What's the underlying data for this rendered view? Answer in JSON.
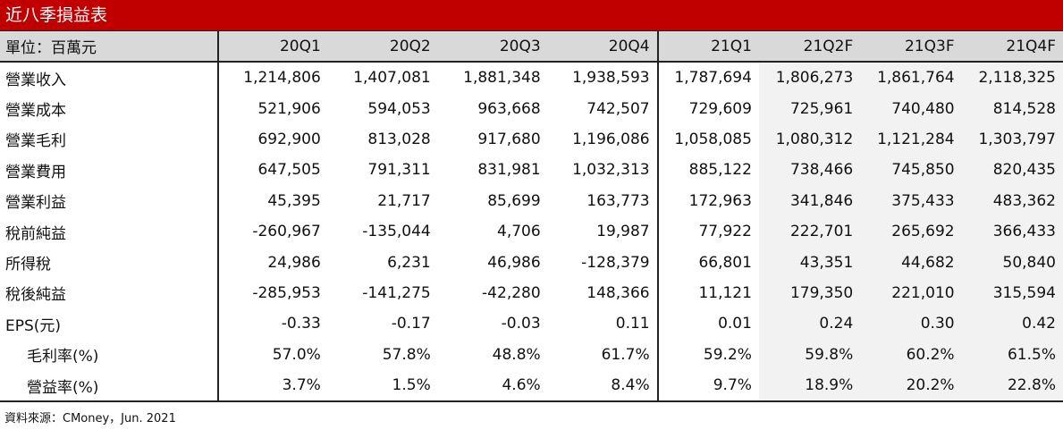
{
  "title": "近八季損益表",
  "unit_label": "單位：百萬元",
  "quarters": [
    "20Q1",
    "20Q2",
    "20Q3",
    "20Q4",
    "21Q1",
    "21Q2F",
    "21Q3F",
    "21Q4F"
  ],
  "rows": [
    {
      "label": "營業收入",
      "values": [
        "1,214,806",
        "1,407,081",
        "1,881,348",
        "1,938,593",
        "1,787,694",
        "1,806,273",
        "1,861,764",
        "2,118,325"
      ]
    },
    {
      "label": "營業成本",
      "values": [
        "521,906",
        "594,053",
        "963,668",
        "742,507",
        "729,609",
        "725,961",
        "740,480",
        "814,528"
      ]
    },
    {
      "label": "營業毛利",
      "values": [
        "692,900",
        "813,028",
        "917,680",
        "1,196,086",
        "1,058,085",
        "1,080,312",
        "1,121,284",
        "1,303,797"
      ]
    },
    {
      "label": "營業費用",
      "values": [
        "647,505",
        "791,311",
        "831,981",
        "1,032,313",
        "885,122",
        "738,466",
        "745,850",
        "820,435"
      ]
    },
    {
      "label": "營業利益",
      "values": [
        "45,395",
        "21,717",
        "85,699",
        "163,773",
        "172,963",
        "341,846",
        "375,433",
        "483,362"
      ]
    },
    {
      "label": "稅前純益",
      "values": [
        "-260,967",
        "-135,044",
        "4,706",
        "19,987",
        "77,922",
        "222,701",
        "265,692",
        "366,433"
      ]
    },
    {
      "label": "所得稅",
      "values": [
        "24,986",
        "6,231",
        "46,986",
        "-128,379",
        "66,801",
        "43,351",
        "44,682",
        "50,840"
      ]
    },
    {
      "label": "稅後純益",
      "values": [
        "-285,953",
        "-141,275",
        "-42,280",
        "148,366",
        "11,121",
        "179,350",
        "221,010",
        "315,594"
      ]
    },
    {
      "label": "EPS(元)",
      "values": [
        "-0.33",
        "-0.17",
        "-0.03",
        "0.11",
        "0.01",
        "0.24",
        "0.30",
        "0.42"
      ]
    },
    {
      "label": "毛利率(%)",
      "values": [
        "57.0%",
        "57.8%",
        "48.8%",
        "61.7%",
        "59.2%",
        "59.8%",
        "60.2%",
        "61.5%"
      ]
    },
    {
      "label": "營益率(%)",
      "values": [
        "3.7%",
        "1.5%",
        "4.6%",
        "8.4%",
        "9.7%",
        "18.9%",
        "20.2%",
        "22.8%"
      ]
    }
  ],
  "source": "資料來源：CMoney，Jun. 2021",
  "colors": {
    "title_bg": "#c00000",
    "header_bg": "#d9d9d9",
    "forecast_bg": "#f2f2f2"
  }
}
